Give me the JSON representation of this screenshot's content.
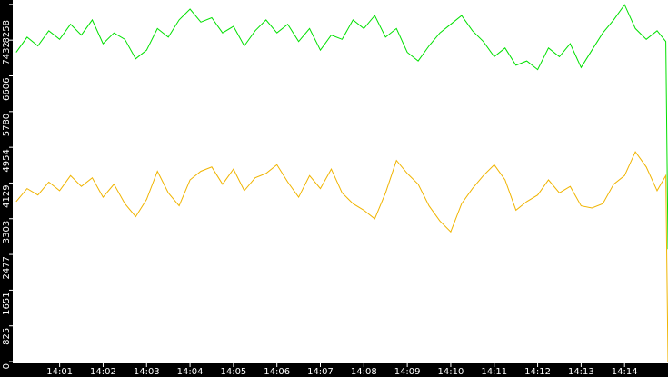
{
  "chart_data": {
    "type": "line",
    "x": [
      0,
      0.25,
      0.5,
      0.75,
      1,
      1.25,
      1.5,
      1.75,
      2,
      2.25,
      2.5,
      2.75,
      3,
      3.25,
      3.5,
      3.75,
      4,
      4.25,
      4.5,
      4.75,
      5,
      5.25,
      5.5,
      5.75,
      6,
      6.25,
      6.5,
      6.75,
      7,
      7.25,
      7.5,
      7.75,
      8,
      8.25,
      8.5,
      8.75,
      9,
      9.25,
      9.5,
      9.75,
      10,
      10.25,
      10.5,
      10.75,
      11,
      11.25,
      11.5,
      11.75,
      12,
      12.25,
      12.5,
      12.75,
      13,
      13.25,
      13.5,
      13.75,
      14,
      14.25,
      14.5,
      14.75,
      14.95,
      15
    ],
    "series": [
      {
        "color": "#00e000",
        "values": [
          7150,
          7500,
          7300,
          7650,
          7450,
          7800,
          7550,
          7900,
          7350,
          7600,
          7450,
          7000,
          7200,
          7700,
          7500,
          7900,
          8150,
          7850,
          7950,
          7600,
          7750,
          7300,
          7650,
          7900,
          7600,
          7800,
          7400,
          7700,
          7200,
          7550,
          7450,
          7900,
          7700,
          8000,
          7500,
          7700,
          7150,
          6950,
          7300,
          7600,
          7800,
          8000,
          7650,
          7400,
          7050,
          7250,
          6850,
          6950,
          6750,
          7250,
          7050,
          7350,
          6800,
          7200,
          7600,
          7900,
          8250,
          7700,
          7450,
          7650,
          7400,
          2600
        ]
      },
      {
        "color": "#f0b400",
        "values": [
          3700,
          4000,
          3850,
          4150,
          3950,
          4300,
          4050,
          4250,
          3800,
          4100,
          3650,
          3350,
          3750,
          4400,
          3900,
          3600,
          4200,
          4400,
          4500,
          4100,
          4450,
          3950,
          4250,
          4350,
          4550,
          4150,
          3800,
          4300,
          4000,
          4450,
          3900,
          3650,
          3500,
          3300,
          3900,
          4650,
          4350,
          4100,
          3600,
          3250,
          3000,
          3650,
          4000,
          4300,
          4550,
          4200,
          3500,
          3700,
          3850,
          4200,
          3900,
          4050,
          3600,
          3550,
          3650,
          4100,
          4300,
          4850,
          4500,
          3950,
          4300,
          0
        ]
      }
    ],
    "xlim": [
      -0.08,
      15
    ],
    "xticks": [
      {
        "value": 1,
        "label": "14:01"
      },
      {
        "value": 2,
        "label": "14:02"
      },
      {
        "value": 3,
        "label": "14:03"
      },
      {
        "value": 4,
        "label": "14:04"
      },
      {
        "value": 5,
        "label": "14:05"
      },
      {
        "value": 6,
        "label": "14:06"
      },
      {
        "value": 7,
        "label": "14:07"
      },
      {
        "value": 8,
        "label": "14:08"
      },
      {
        "value": 9,
        "label": "14:09"
      },
      {
        "value": 10,
        "label": "14:10"
      },
      {
        "value": 11,
        "label": "14:11"
      },
      {
        "value": 12,
        "label": "14:12"
      },
      {
        "value": 13,
        "label": "14:13"
      },
      {
        "value": 14,
        "label": "14:14"
      }
    ],
    "ylim": [
      0,
      8360
    ],
    "yticks": [
      0,
      825,
      1651,
      2477,
      3303,
      4129,
      4954,
      5780,
      6606,
      7432,
      8258
    ]
  }
}
